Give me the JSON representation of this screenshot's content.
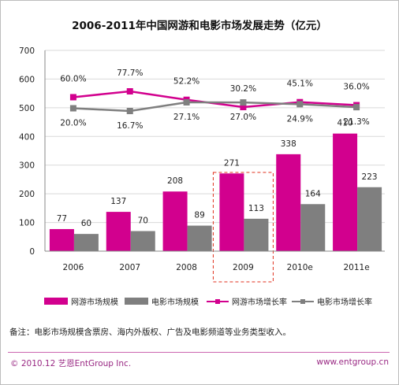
{
  "chart_data": {
    "type": "bar",
    "title": "2006-2011年中国网游和电影市场发展走势（亿元）",
    "categories": [
      "2006",
      "2007",
      "2008",
      "2009",
      "2010e",
      "2011e"
    ],
    "ylim": [
      0,
      700
    ],
    "yticks": [
      "0",
      "100",
      "200",
      "300",
      "400",
      "500",
      "600",
      "700"
    ],
    "grid": true,
    "legend_position": "bottom",
    "series": [
      {
        "name": "网游市场规模",
        "kind": "bar",
        "color": "#d2008e",
        "values": [
          77,
          137,
          208,
          271,
          338,
          410
        ]
      },
      {
        "name": "电影市场规模",
        "kind": "bar",
        "color": "#7f7f7f",
        "values": [
          60,
          70,
          89,
          113,
          164,
          223
        ]
      },
      {
        "name": "网游市场增长率",
        "kind": "line",
        "color": "#d2008e",
        "values": [
          60.0,
          77.7,
          52.2,
          30.2,
          45.1,
          36.0
        ],
        "labels": [
          "60.0%",
          "77.7%",
          "52.2%",
          "30.2%",
          "45.1%",
          "36.0%"
        ]
      },
      {
        "name": "电影市场增长率",
        "kind": "line",
        "color": "#7f7f7f",
        "values": [
          20.0,
          16.7,
          27.1,
          27.0,
          24.9,
          21.3
        ],
        "labels": [
          "20.0%",
          "16.7%",
          "27.1%",
          "27.0%",
          "24.9%",
          "21.3%"
        ]
      }
    ],
    "highlight_category": "2009"
  },
  "note": "备注：电影市场规模含票房、海内外版权、广告及电影频道等业务类型收入。",
  "footer": {
    "left": "© 2010.12  艺恩EntGroup Inc.",
    "right": "www.entgroup.cn"
  },
  "colors": {
    "magenta": "#d2008e",
    "gray": "#7f7f7f",
    "footer": "#9a2a84"
  }
}
